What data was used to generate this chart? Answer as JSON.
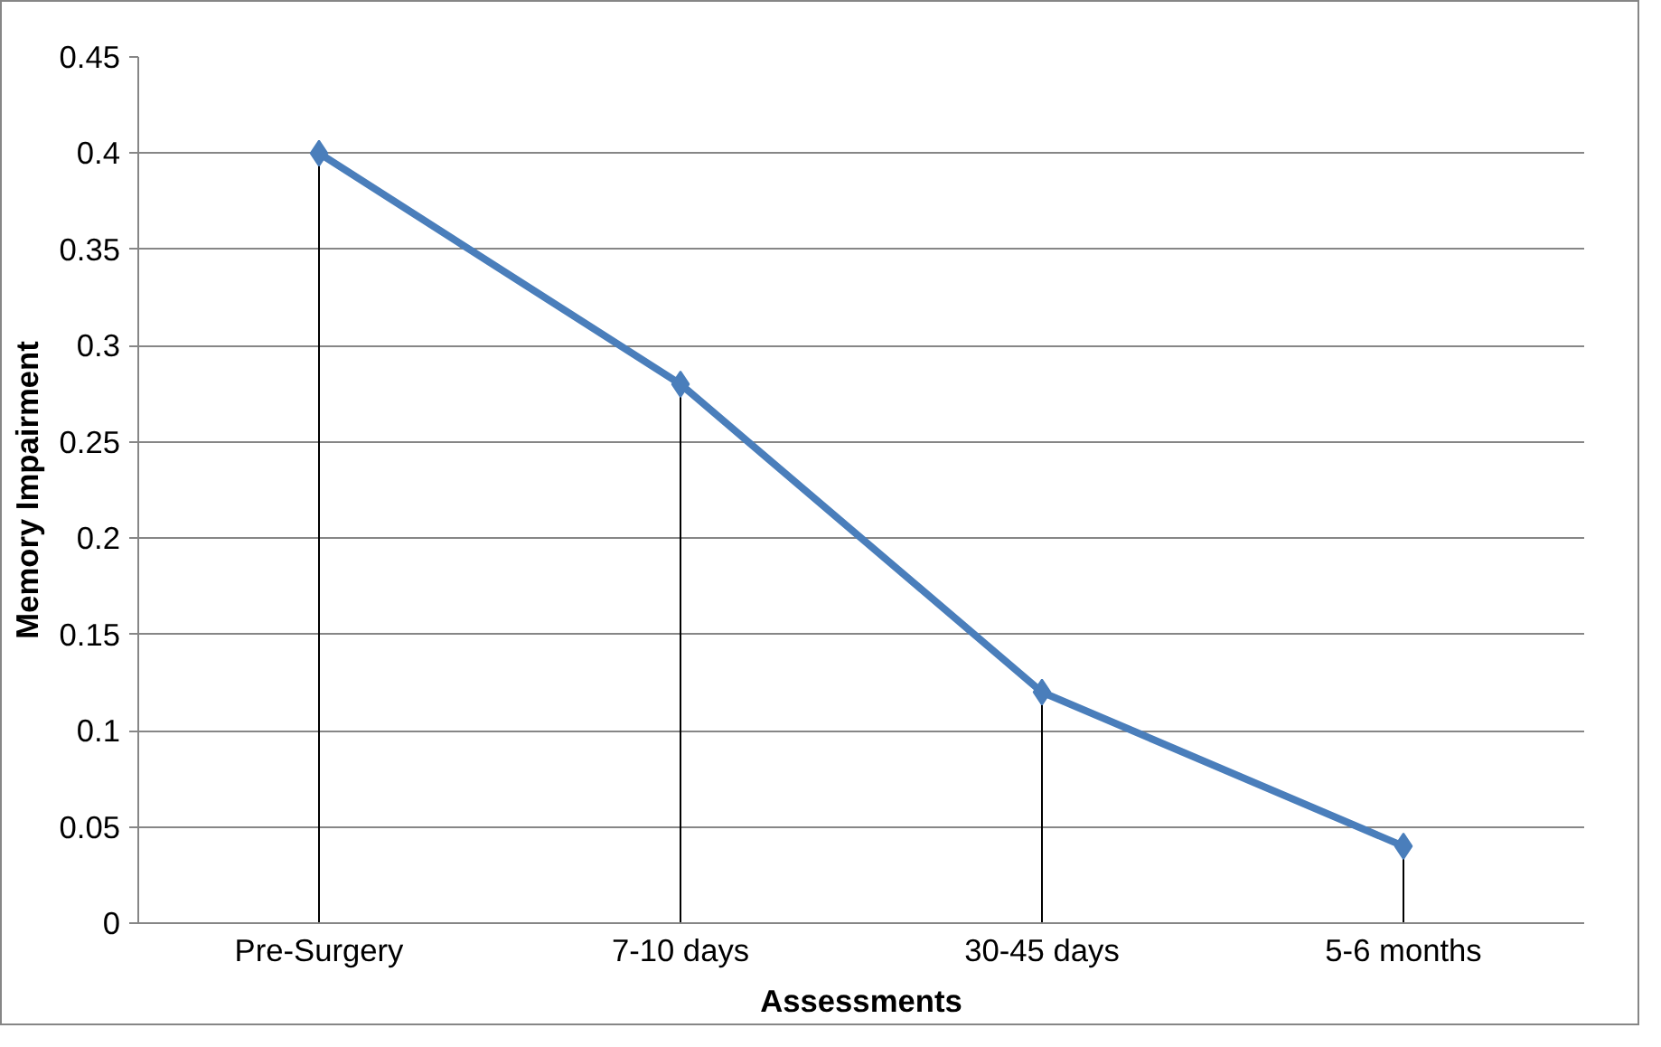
{
  "chart_data": {
    "type": "line",
    "xlabel": "Assessments",
    "ylabel": "Memory Impairment",
    "categories": [
      "Pre-Surgery",
      "7-10 days",
      "30-45 days",
      "5-6 months"
    ],
    "series": [
      {
        "color": "#4a7ebb",
        "values": [
          0.4,
          0.28,
          0.12,
          0.04
        ],
        "errors": [
          [
            0,
            0.4
          ],
          [
            0,
            0.28
          ],
          [
            0,
            0.12
          ],
          [
            0,
            0.04
          ]
        ]
      }
    ],
    "ylim": [
      0,
      0.45
    ],
    "yticks": [
      0,
      0.05,
      0.1,
      0.15,
      0.2,
      0.25,
      0.3,
      0.35,
      0.4,
      0.45
    ],
    "grid": "y",
    "marker": "diamond",
    "line_style": "solid"
  }
}
